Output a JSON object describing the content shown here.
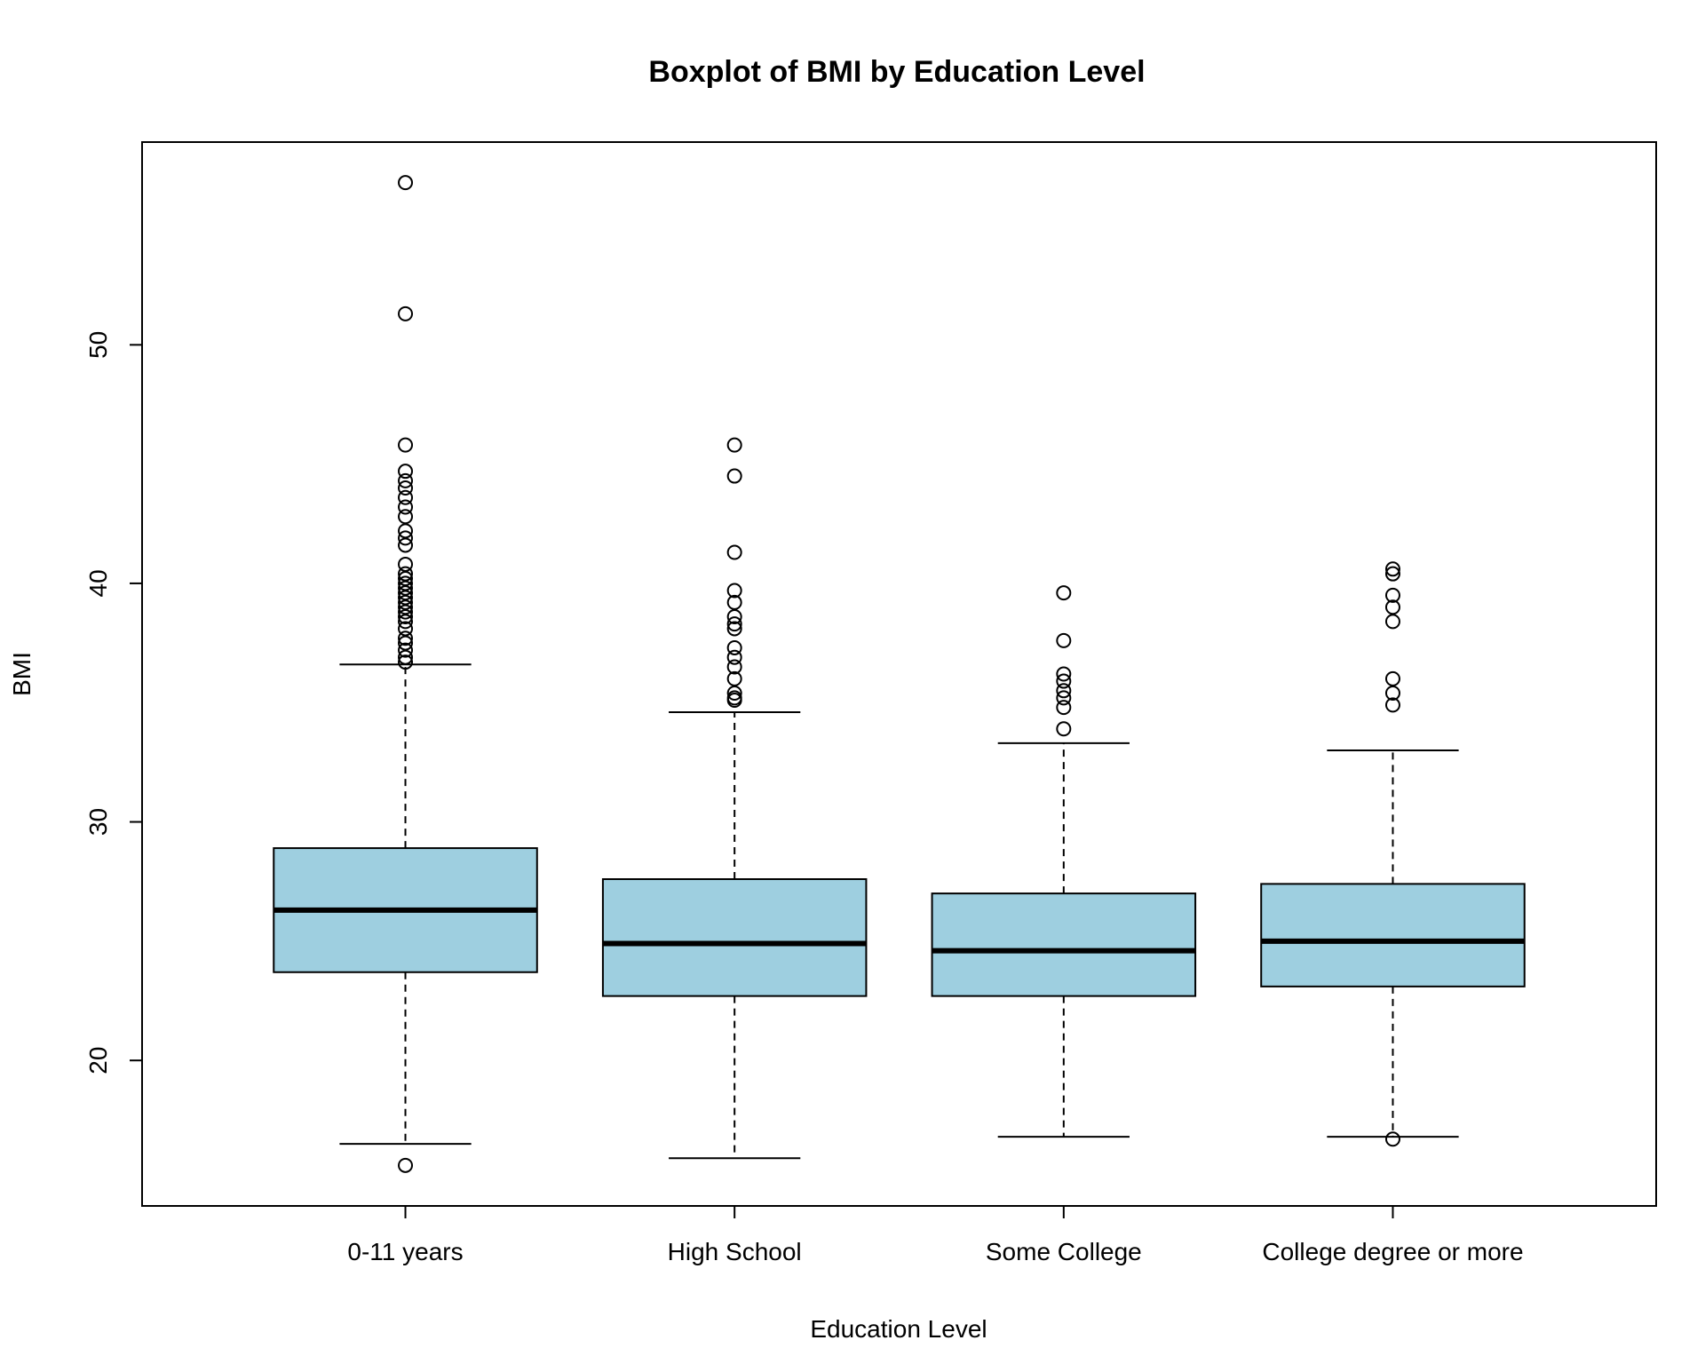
{
  "chart_data": {
    "type": "boxplot",
    "title": "Boxplot of BMI by Education Level",
    "xlabel": "Education Level",
    "ylabel": "BMI",
    "categories": [
      "0-11 years",
      "High School",
      "Some College",
      "College degree or more"
    ],
    "ylim": [
      13.9,
      58.5
    ],
    "yticks": [
      20,
      30,
      40,
      50
    ],
    "box_color": "#9ecfe0",
    "grid": false,
    "legend": "none",
    "boxes": [
      {
        "category": "0-11 years",
        "whisker_low": 16.5,
        "q1": 23.7,
        "median": 26.3,
        "q3": 28.9,
        "whisker_high": 36.6,
        "outliers": [
          56.8,
          51.3,
          45.8,
          44.7,
          44.3,
          44.0,
          43.6,
          43.2,
          42.8,
          42.2,
          41.9,
          41.6,
          40.8,
          40.4,
          40.2,
          40.0,
          39.8,
          39.6,
          39.4,
          39.2,
          39.0,
          38.8,
          38.6,
          38.4,
          38.1,
          37.7,
          37.5,
          37.2,
          36.9,
          36.7,
          15.6
        ]
      },
      {
        "category": "High School",
        "whisker_low": 15.9,
        "q1": 22.7,
        "median": 24.9,
        "q3": 27.6,
        "whisker_high": 34.6,
        "outliers": [
          45.8,
          44.5,
          41.3,
          39.7,
          39.2,
          38.6,
          38.3,
          38.1,
          37.3,
          36.9,
          36.5,
          36.0,
          35.4,
          35.2,
          35.1
        ]
      },
      {
        "category": "Some College",
        "whisker_low": 16.8,
        "q1": 22.7,
        "median": 24.6,
        "q3": 27.0,
        "whisker_high": 33.3,
        "outliers": [
          39.6,
          37.6,
          36.2,
          35.9,
          35.5,
          35.2,
          34.8,
          33.9
        ]
      },
      {
        "category": "College degree or more",
        "whisker_low": 16.8,
        "q1": 23.1,
        "median": 25.0,
        "q3": 27.4,
        "whisker_high": 33.0,
        "outliers": [
          40.6,
          40.4,
          39.5,
          39.0,
          38.4,
          36.0,
          35.4,
          34.9,
          16.7
        ]
      }
    ]
  }
}
